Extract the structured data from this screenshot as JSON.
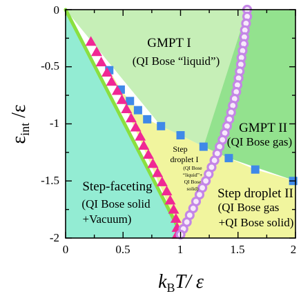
{
  "chart_data": {
    "type": "scatter",
    "xlim": [
      0,
      2
    ],
    "ylim": [
      -2,
      0
    ],
    "x_ticks": [
      "0",
      "0.5",
      "1",
      "1.5",
      "2"
    ],
    "y_ticks": [
      "0",
      "-0.5",
      "-1",
      "-1.5",
      "-2"
    ],
    "xlabel": {
      "k": "k",
      "sub": "B",
      "rest": "T/ ε"
    },
    "ylabel": {
      "main": "ε",
      "sub": "int",
      "rest": " /ε"
    },
    "colors": {
      "gmpt1": "#c6efb7",
      "gmpt2": "#93e28e",
      "step_faceting": "#93ecd3",
      "step_droplet": "#f1f59e",
      "line": "#8ae03f",
      "triangle": "#f02894",
      "square": "#3f89e8",
      "circle_stroke": "#c486e6"
    },
    "regions": {
      "gmpt1": {
        "line1": "GMPT I",
        "line2": "(QI Bose “liquid”)"
      },
      "gmpt2": {
        "line1": "GMPT II",
        "line2": "(QI Bose gas)"
      },
      "step_faceting": {
        "line1": "Step-faceting",
        "line2": "(QI Bose solid",
        "line3": "+Vacuum)"
      },
      "droplet1": {
        "line1": "Step",
        "line2": "droplet I",
        "line3": "(QI Bose",
        "line4": "“liquid”+",
        "line5": "QI Bose",
        "line6": "solid)"
      },
      "droplet2": {
        "line1": "Step droplet II",
        "line2": "(QI Bose gas",
        "line3": "+QI Bose solid)"
      }
    },
    "line_series": {
      "x": [
        0,
        1.0
      ],
      "y": [
        0,
        -1.95
      ]
    },
    "triangles": {
      "x": [
        0.22,
        0.27,
        0.31,
        0.36,
        0.4,
        0.45,
        0.49,
        0.53,
        0.57,
        0.61,
        0.65,
        0.68,
        0.72,
        0.76,
        0.8,
        0.84,
        0.88,
        0.91,
        0.94,
        0.96,
        0.97,
        0.97
      ],
      "y": [
        -0.28,
        -0.37,
        -0.46,
        -0.55,
        -0.63,
        -0.71,
        -0.79,
        -0.87,
        -0.95,
        -1.03,
        -1.11,
        -1.19,
        -1.27,
        -1.35,
        -1.43,
        -1.51,
        -1.59,
        -1.67,
        -1.75,
        -1.83,
        -1.91,
        -1.97
      ]
    },
    "squares": {
      "x": [
        0.38,
        0.48,
        0.56,
        0.63,
        0.71,
        0.83,
        1.0,
        1.2,
        1.42,
        1.65,
        1.98
      ],
      "y": [
        -0.53,
        -0.7,
        -0.8,
        -0.88,
        -0.96,
        -1.02,
        -1.1,
        -1.2,
        -1.3,
        -1.4,
        -1.5
      ]
    },
    "circles": {
      "x": [
        1.58,
        1.58,
        1.57,
        1.56,
        1.555,
        1.55,
        1.54,
        1.53,
        1.525,
        1.515,
        1.505,
        1.495,
        1.485,
        1.47,
        1.455,
        1.44,
        1.425,
        1.405,
        1.385,
        1.365,
        1.34,
        1.32,
        1.295,
        1.27,
        1.245,
        1.22,
        1.19,
        1.165,
        1.135,
        1.11,
        1.08,
        1.055,
        1.025,
        1.0
      ],
      "y": [
        0.0,
        -0.06,
        -0.12,
        -0.18,
        -0.24,
        -0.3,
        -0.36,
        -0.42,
        -0.48,
        -0.54,
        -0.6,
        -0.66,
        -0.72,
        -0.78,
        -0.84,
        -0.9,
        -0.96,
        -1.02,
        -1.08,
        -1.14,
        -1.2,
        -1.26,
        -1.32,
        -1.38,
        -1.44,
        -1.5,
        -1.56,
        -1.62,
        -1.68,
        -1.74,
        -1.8,
        -1.86,
        -1.92,
        -1.97
      ]
    },
    "grid": false,
    "legend": "none"
  }
}
